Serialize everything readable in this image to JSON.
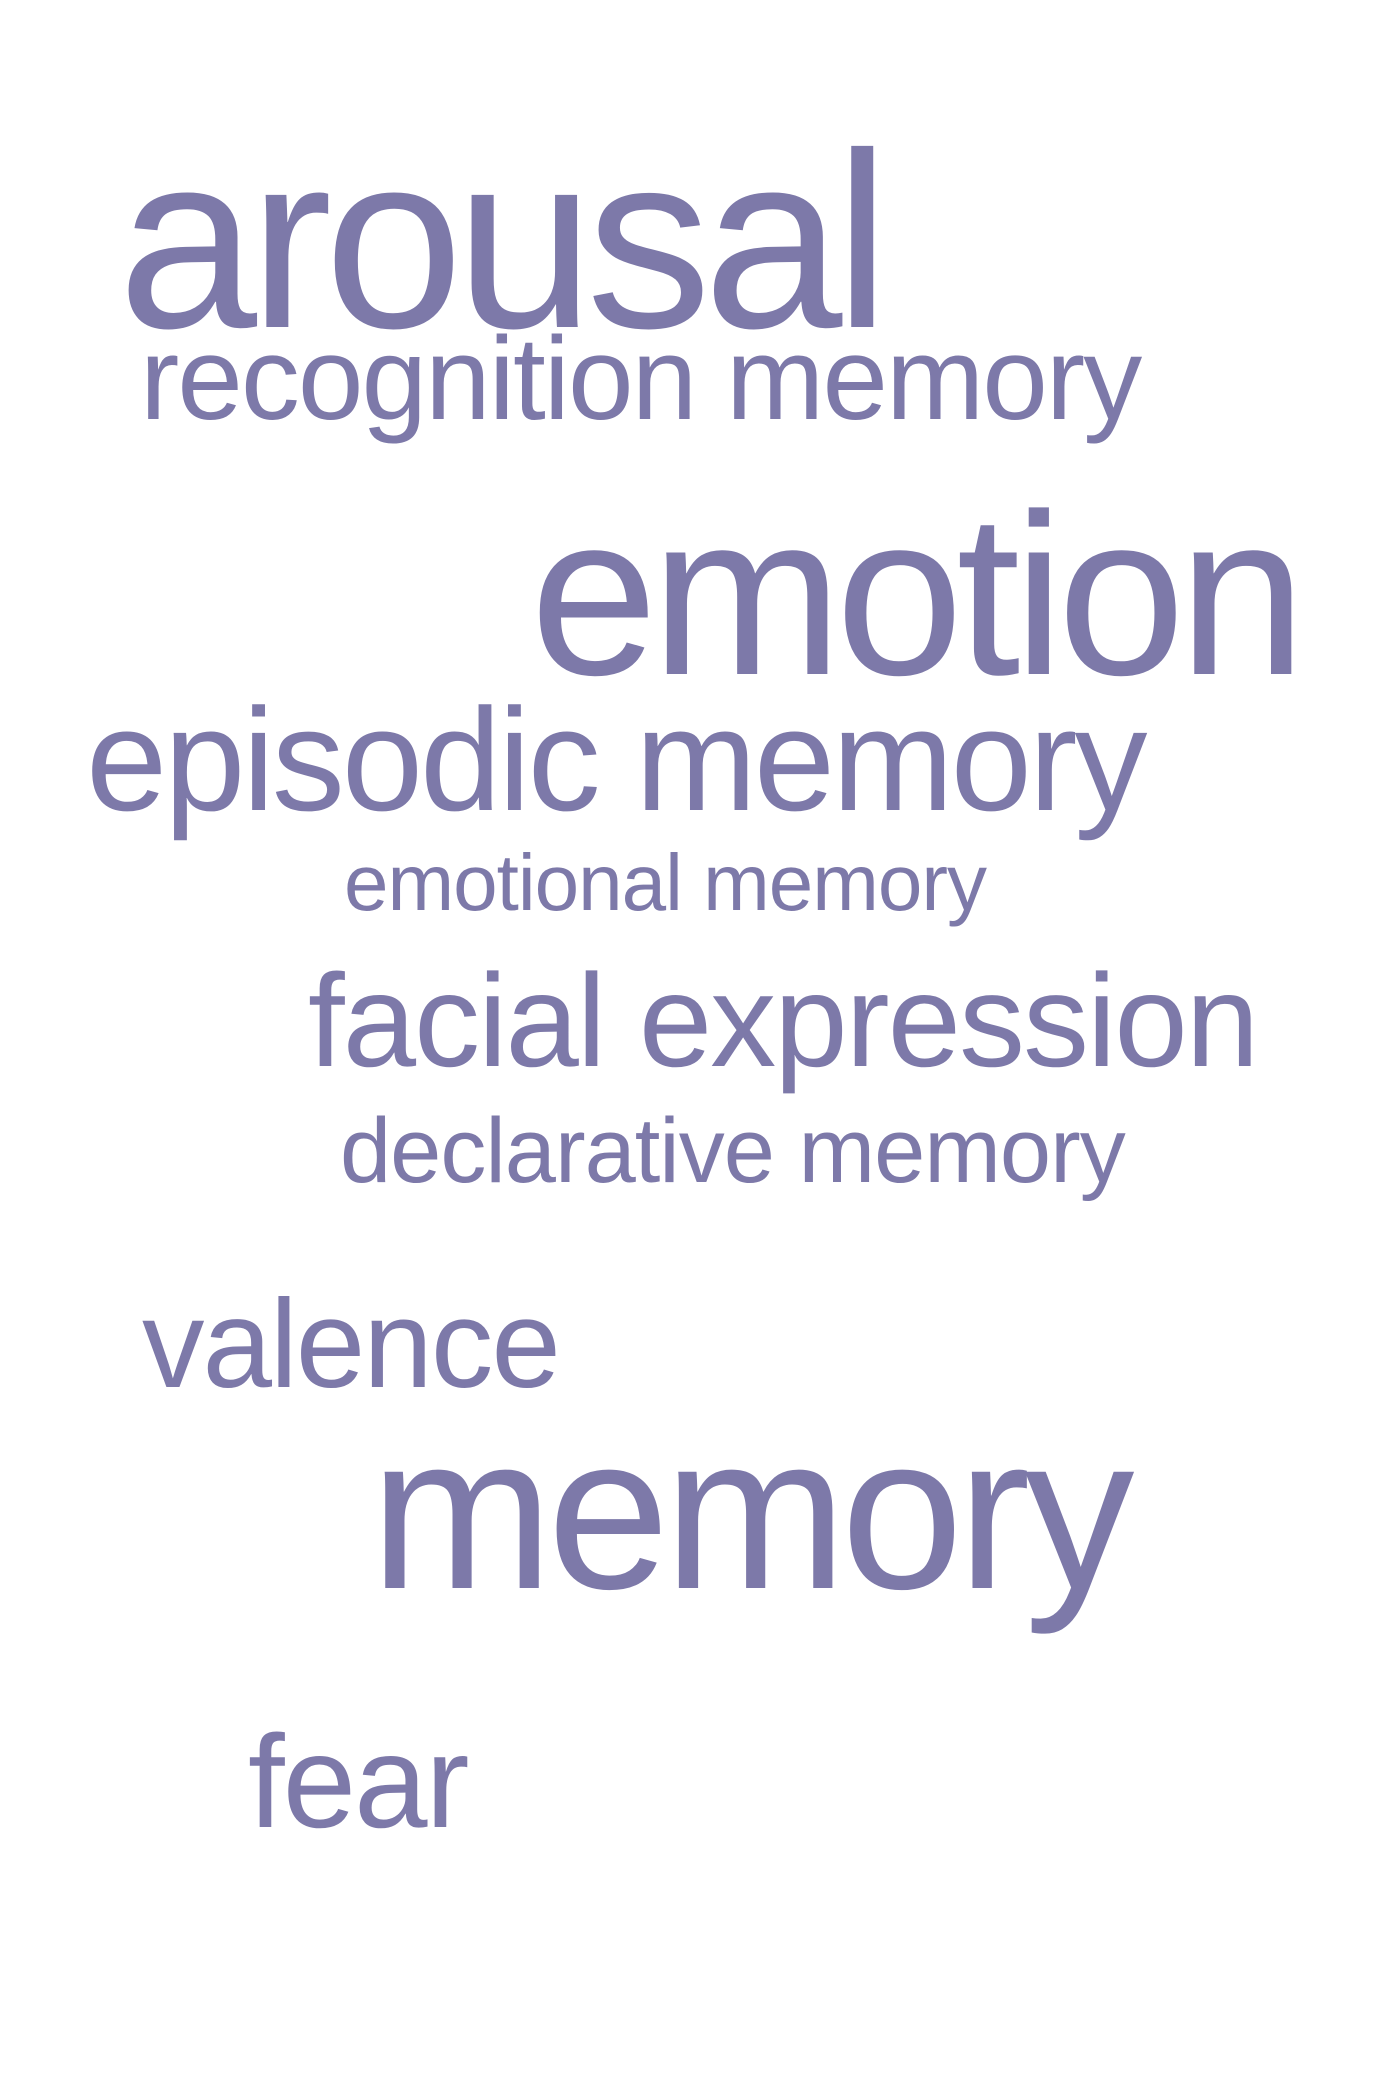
{
  "style": {
    "word_color": "#7d79a9",
    "background": "#ffffff"
  },
  "words": [
    {
      "id": "arousal",
      "text": "arousal"
    },
    {
      "id": "recognition",
      "text": "recognition memory"
    },
    {
      "id": "emotion",
      "text": "emotion"
    },
    {
      "id": "episodic",
      "text": "episodic memory"
    },
    {
      "id": "emotional",
      "text": "emotional memory"
    },
    {
      "id": "facial",
      "text": "facial expression"
    },
    {
      "id": "declarative",
      "text": "declarative memory"
    },
    {
      "id": "valence",
      "text": "valence"
    },
    {
      "id": "memory",
      "text": "memory"
    },
    {
      "id": "fear",
      "text": "fear"
    }
  ]
}
